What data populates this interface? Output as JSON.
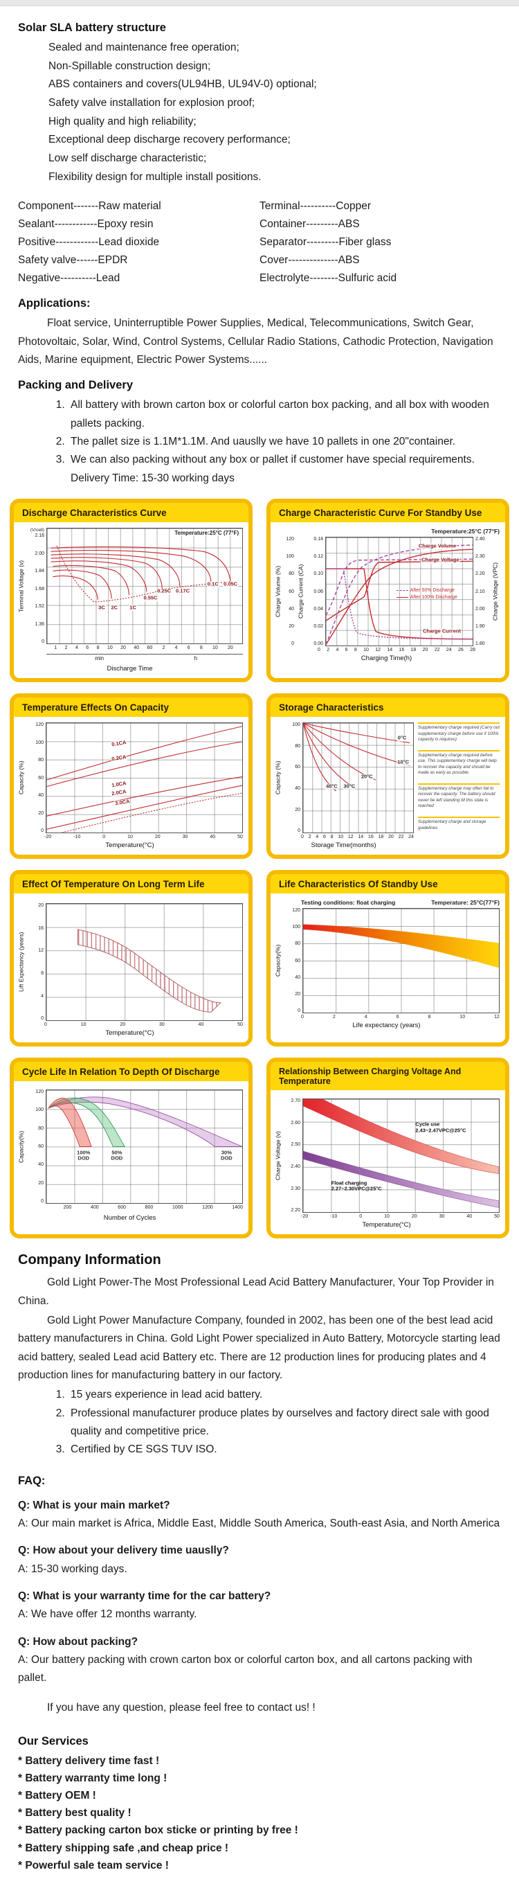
{
  "colors": {
    "accent_yellow": "#FFD60A",
    "card_border": "#F4BB00",
    "curve_red": "#C42A2F",
    "curve_purple": "#A8439F",
    "band_green": "#2F9E5B",
    "band_purple": "#9A4FA5",
    "text": "#1C1C1C"
  },
  "structure": {
    "title": "Solar SLA battery structure",
    "items": [
      "Sealed and maintenance free operation;",
      "Non-Spillable construction design;",
      "ABS containers and covers(UL94HB, UL94V-0) optional;",
      "Safety valve installation for explosion proof;",
      "High quality and high reliability;",
      "Exceptional deep discharge recovery performance;",
      "Low self discharge characteristic;",
      "Flexibility design for multiple install positions."
    ]
  },
  "components": {
    "left": [
      "Component-------Raw material",
      "Sealant------------Epoxy resin",
      "Positive------------Lead dioxide",
      "Safety valve------EPDR",
      "Negative----------Lead"
    ],
    "right": [
      "Terminal----------Copper",
      "Container---------ABS",
      "Separator---------Fiber glass",
      "Cover--------------ABS",
      "Electrolyte--------Sulfuric acid"
    ]
  },
  "applications": {
    "title": "Applications:",
    "text": "Float service, Uninterruptible Power Supplies, Medical, Telecommunications, Switch Gear, Photovoltaic, Solar, Wind, Control Systems, Cellular Radio Stations, Cathodic Protection, Navigation Aids, Marine equipment, Electric Power Systems......"
  },
  "packing": {
    "title": "Packing and Delivery",
    "items": [
      "All battery with brown carton box or colorful carton box packing, and all box with wooden pallets packing.",
      "The pallet size is 1.1M*1.1M. And uauslly we have 10 pallets in one 20\"container.",
      "We can also packing without any box or pallet if customer have special requirements."
    ],
    "delivery_time": "Delivery Time: 15-30 working days"
  },
  "chart_data": [
    {
      "type": "line",
      "title": "Discharge Characteristics Curve",
      "annotation": "Temperature:25°C (77°F)",
      "xlabel": "Discharge Time",
      "ylabel": "Terminal Voltage (v)",
      "y_axis_unit": "(V/cell)",
      "y_ticks": [
        "2.16",
        "2.00",
        "1.84",
        "1.68",
        "1.52",
        "1.36",
        "0"
      ],
      "x_ticks_min": [
        "1",
        "2",
        "4",
        "6",
        "8",
        "10",
        "20",
        "40",
        "60"
      ],
      "x_ticks_h": [
        "2",
        "4",
        "6",
        "8",
        "10",
        "20"
      ],
      "x_unit_groups": [
        "min",
        "h"
      ],
      "curves": [
        {
          "label": "3C",
          "plateau_v": 1.95,
          "cutoff_v": 1.6,
          "approx_end": "6 min"
        },
        {
          "label": "2C",
          "plateau_v": 1.97,
          "cutoff_v": 1.6,
          "approx_end": "10 min"
        },
        {
          "label": "1C",
          "plateau_v": 2.0,
          "cutoff_v": 1.6,
          "approx_end": "30 min"
        },
        {
          "label": "0.55C",
          "plateau_v": 2.02,
          "cutoff_v": 1.62,
          "approx_end": "1 h"
        },
        {
          "label": "0.25C",
          "plateau_v": 2.04,
          "cutoff_v": 1.65,
          "approx_end": "2 h"
        },
        {
          "label": "0.17C",
          "plateau_v": 2.06,
          "cutoff_v": 1.67,
          "approx_end": "3 h"
        },
        {
          "label": "0.1C",
          "plateau_v": 2.08,
          "cutoff_v": 1.7,
          "approx_end": "10 h"
        },
        {
          "label": "0.05C",
          "plateau_v": 2.1,
          "cutoff_v": 1.72,
          "approx_end": "20 h"
        }
      ]
    },
    {
      "type": "line",
      "title": "Charge Characteristic Curve For Standby Use",
      "annotation": "Temperature:25°C (77°F)",
      "xlabel": "Charging Time(h)",
      "x_ticks": [
        "0",
        "2",
        "4",
        "6",
        "8",
        "10",
        "12",
        "14",
        "16",
        "18",
        "20",
        "22",
        "24",
        "26",
        "28"
      ],
      "axes": {
        "volume": {
          "label": "Charge Volume (%)",
          "ticks": [
            "120",
            "100",
            "80",
            "60",
            "40",
            "20",
            "0"
          ]
        },
        "current": {
          "label": "Charge Current (CA)",
          "ticks": [
            "0.14",
            "0.12",
            "0.10",
            "0.06",
            "0.04",
            "0.02",
            "0.00"
          ]
        },
        "voltage": {
          "label": "Charge Voltage (VPC)",
          "ticks": [
            "2.40",
            "2.30",
            "2.20",
            "2.10",
            "2.00",
            "1.90",
            "1.80"
          ]
        }
      },
      "legend": [
        {
          "label": "After 50% Discharge",
          "style": "dashed"
        },
        {
          "label": "After 100% Discharge",
          "style": "solid"
        }
      ],
      "curve_labels": [
        "Charge Volume",
        "Charge Voltage",
        "Charge Current"
      ],
      "series_summary": [
        {
          "name": "Charge Volume after 100% discharge",
          "x_h": [
            0,
            4,
            8,
            16,
            28
          ],
          "volume_pct": [
            0,
            55,
            80,
            100,
            108
          ]
        },
        {
          "name": "Charge Volume after 50% discharge",
          "x_h": [
            0,
            4,
            8,
            16,
            28
          ],
          "volume_pct": [
            0,
            75,
            95,
            105,
            110
          ]
        },
        {
          "name": "Charge Current after 100% discharge",
          "x_h": [
            0,
            7.5,
            10,
            28
          ],
          "current_ca": [
            0.1,
            0.1,
            0.02,
            0.005
          ]
        },
        {
          "name": "Charge Current after 50% discharge",
          "x_h": [
            0,
            3.5,
            7,
            28
          ],
          "current_ca": [
            0.1,
            0.1,
            0.02,
            0.005
          ]
        },
        {
          "name": "Charge Voltage after 100% discharge",
          "x_h": [
            0,
            8,
            10,
            28
          ],
          "vpc": [
            1.95,
            2.1,
            2.28,
            2.28
          ]
        },
        {
          "name": "Charge Voltage after 50% discharge",
          "x_h": [
            0,
            4,
            6,
            28
          ],
          "vpc": [
            1.98,
            2.25,
            2.28,
            2.28
          ]
        }
      ]
    },
    {
      "type": "line",
      "title": "Temperature Effects On Capacity",
      "xlabel": "Temperature(°C)",
      "ylabel": "Capacity (%)",
      "y_ticks": [
        "120",
        "100",
        "80",
        "60",
        "40",
        "20",
        "0"
      ],
      "x_ticks": [
        "-20",
        "-10",
        "0",
        "10",
        "20",
        "30",
        "40",
        "50"
      ],
      "series": [
        {
          "label": "0.1CA",
          "x_c": [
            -20,
            0,
            20,
            50
          ],
          "capacity_pct": [
            55,
            75,
            95,
            115
          ]
        },
        {
          "label": "0.2CA",
          "x_c": [
            -20,
            0,
            20,
            50
          ],
          "capacity_pct": [
            50,
            66,
            81,
            97
          ]
        },
        {
          "label": "1.0CA",
          "x_c": [
            -20,
            0,
            20,
            50
          ],
          "capacity_pct": [
            17,
            30,
            46,
            62
          ]
        },
        {
          "label": "2.0CA",
          "x_c": [
            -20,
            0,
            20,
            50
          ],
          "capacity_pct": [
            3,
            20,
            36,
            52
          ]
        },
        {
          "label": "3.0CA",
          "x_c": [
            -15,
            0,
            20,
            50
          ],
          "capacity_pct": [
            0,
            10,
            27,
            43
          ],
          "style": "dashed"
        }
      ]
    },
    {
      "type": "line",
      "title": "Storage Characteristics",
      "xlabel": "Storage Time(months)",
      "ylabel": "Capacity (%)",
      "y_ticks": [
        "100",
        "80",
        "60",
        "40",
        "20",
        "0"
      ],
      "x_ticks": [
        "0",
        "2",
        "4",
        "6",
        "8",
        "10",
        "12",
        "14",
        "16",
        "18",
        "20",
        "22",
        "24"
      ],
      "series": [
        {
          "label": "0°C",
          "x_months": [
            0,
            8,
            16,
            24
          ],
          "capacity_pct": [
            100,
            93,
            86,
            81
          ]
        },
        {
          "label": "10°C",
          "x_months": [
            0,
            8,
            16,
            24
          ],
          "capacity_pct": [
            100,
            84,
            71,
            60
          ]
        },
        {
          "label": "20°C",
          "x_months": [
            0,
            6,
            12,
            16.5
          ],
          "capacity_pct": [
            100,
            75,
            57,
            47
          ]
        },
        {
          "label": "30°C",
          "x_months": [
            0,
            4,
            8,
            12
          ],
          "capacity_pct": [
            100,
            70,
            52,
            40
          ]
        },
        {
          "label": "40°C",
          "x_months": [
            0,
            2,
            5,
            7.5
          ],
          "capacity_pct": [
            100,
            72,
            50,
            42
          ]
        }
      ],
      "notes": [
        "Supplementary charge required (Carry out supplementary charge before use if 100% capacity is requires)",
        "Supplementary charge required before use. This supplementary charge will help to recover the capacity and should be made as early as possible.",
        "Supplementary charge may often fail to recover the capacity. The battery should never be left standing till this state is reached",
        "Supplementary charge and storage guidelines"
      ]
    },
    {
      "type": "band",
      "title": "Effect Of Temperature On Long Term Life",
      "xlabel": "Temperature(°C)",
      "ylabel": "Lift Expectancy (years)",
      "y_ticks": [
        "20",
        "16",
        "12",
        "8",
        "4",
        "0"
      ],
      "x_ticks": [
        "0",
        "10",
        "20",
        "30",
        "40",
        "50"
      ],
      "band": {
        "x_c": [
          8,
          20,
          30,
          40,
          45
        ],
        "upper_years": [
          15.6,
          12,
          7.5,
          4.5,
          3
        ],
        "lower_years": [
          13,
          10,
          5.5,
          2.5,
          1.5
        ],
        "style": "hatched"
      }
    },
    {
      "type": "band",
      "title": "Life Characteristics Of Standby Use",
      "annotations": [
        "Testing conditions: float charging",
        "Temperature: 25°C(77°F)"
      ],
      "xlabel": "Life expectancy (years)",
      "ylabel": "Capacity(%)",
      "y_ticks": [
        "120",
        "100",
        "80",
        "60",
        "40",
        "20",
        "0"
      ],
      "x_ticks": [
        "0",
        "2",
        "4",
        "6",
        "8",
        "10",
        "12"
      ],
      "band": {
        "x_years": [
          0,
          4,
          8,
          12
        ],
        "upper_pct": [
          102,
          98,
          90,
          80
        ],
        "lower_pct": [
          96,
          88,
          70,
          50
        ],
        "style": "red-orange-yellow gradient"
      }
    },
    {
      "type": "band",
      "title": "Cycle Life In Relation To Depth Of Discharge",
      "xlabel": "Number of Cycles",
      "ylabel": "Capacity(%)",
      "y_ticks": [
        "120",
        "100",
        "80",
        "60",
        "40",
        "20",
        "0"
      ],
      "x_ticks_display": [
        "",
        "200",
        "400",
        "600",
        "800",
        "1000",
        "1200",
        "1400"
      ],
      "x_ticks": [
        200,
        400,
        600,
        800,
        1000,
        1200,
        1400
      ],
      "bands": [
        {
          "l1": "100%",
          "l2": "DOD",
          "color": "red",
          "peak_pct": 112,
          "cycles_at_60pct": [
            230,
            320
          ]
        },
        {
          "l1": "50%",
          "l2": "DOD",
          "color": "green",
          "peak_pct": 110,
          "cycles_at_60pct": [
            480,
            560
          ]
        },
        {
          "l1": "30%",
          "l2": "DOD",
          "color": "purple",
          "peak_pct": 109,
          "cycles_at_60pct": [
            1200,
            1400
          ]
        }
      ]
    },
    {
      "type": "band",
      "title": "Relationship Between Charging Voltage And Temperature",
      "xlabel": "Temperature(°C)",
      "ylabel": "Charge Voltage (v)",
      "y_ticks": [
        "2.70",
        "2.60",
        "2.50",
        "2.40",
        "2.30",
        "2.20"
      ],
      "x_ticks": [
        "-20",
        "-10",
        "0",
        "10",
        "20",
        "30",
        "40",
        "50"
      ],
      "band_labels": [
        {
          "l1": "Cycle use",
          "l2": "2.43~2.47VPC@25°C"
        },
        {
          "l1": "Float charging",
          "l2": "2.27~2.30VPC@25°C"
        }
      ],
      "bands": [
        {
          "name": "Cycle use",
          "x_c": [
            -20,
            0,
            25,
            50
          ],
          "upper_v": [
            2.72,
            2.6,
            2.47,
            2.4
          ],
          "lower_v": [
            2.66,
            2.53,
            2.43,
            2.34
          ]
        },
        {
          "name": "Float charging",
          "x_c": [
            -20,
            0,
            25,
            50
          ],
          "upper_v": [
            2.47,
            2.4,
            2.3,
            2.25
          ],
          "lower_v": [
            2.44,
            2.36,
            2.27,
            2.22
          ]
        }
      ]
    }
  ],
  "company": {
    "title": "Company Information",
    "para1": "Gold Light Power-The Most Professional Lead Acid Battery Manufacturer, Your Top Provider in China.",
    "para2": "Gold Light Power Manufacture Company, founded in 2002, has been one of the best lead acid battery manufacturers in China. Gold Light Power specialized in Auto Battery, Motorcycle starting lead acid battery, sealed Lead acid Battery etc. There are 12 production lines for producing plates and 4 production lines for manufacturing battery in our factory.",
    "points": [
      "15 years experience in lead acid battery.",
      "Professional manufacturer produce plates by ourselves and factory direct sale with good quality and competitive price.",
      "Certified by CE SGS TUV ISO."
    ]
  },
  "faq": {
    "title": "FAQ:",
    "items": [
      {
        "q": "Q: What is your main market?",
        "a": "A: Our main market is Africa, Middle East, Middle South America, South-east Asia, and North America"
      },
      {
        "q": "Q: How about your delivery time uauslly?",
        "a": "A: 15-30 working days."
      },
      {
        "q": "Q: What is your warranty time for the car battery?",
        "a": "A: We have offer 12 months warranty."
      },
      {
        "q": "Q: How about packing?",
        "a": "A: Our battery packing with crown carton box or colorful carton box, and all cartons packing with pallet."
      }
    ],
    "contact": "If you have any question, please feel free to contact us! !"
  },
  "services": {
    "title": "Our Services",
    "items": [
      "* Battery delivery time fast !",
      "* Battery warranty time long !",
      "* Battery OEM !",
      "* Battery best quality !",
      "* Battery packing carton box sticke or printing by free !",
      "* Battery shipping safe ,and cheap price !",
      "* Powerful sale team service !"
    ]
  }
}
